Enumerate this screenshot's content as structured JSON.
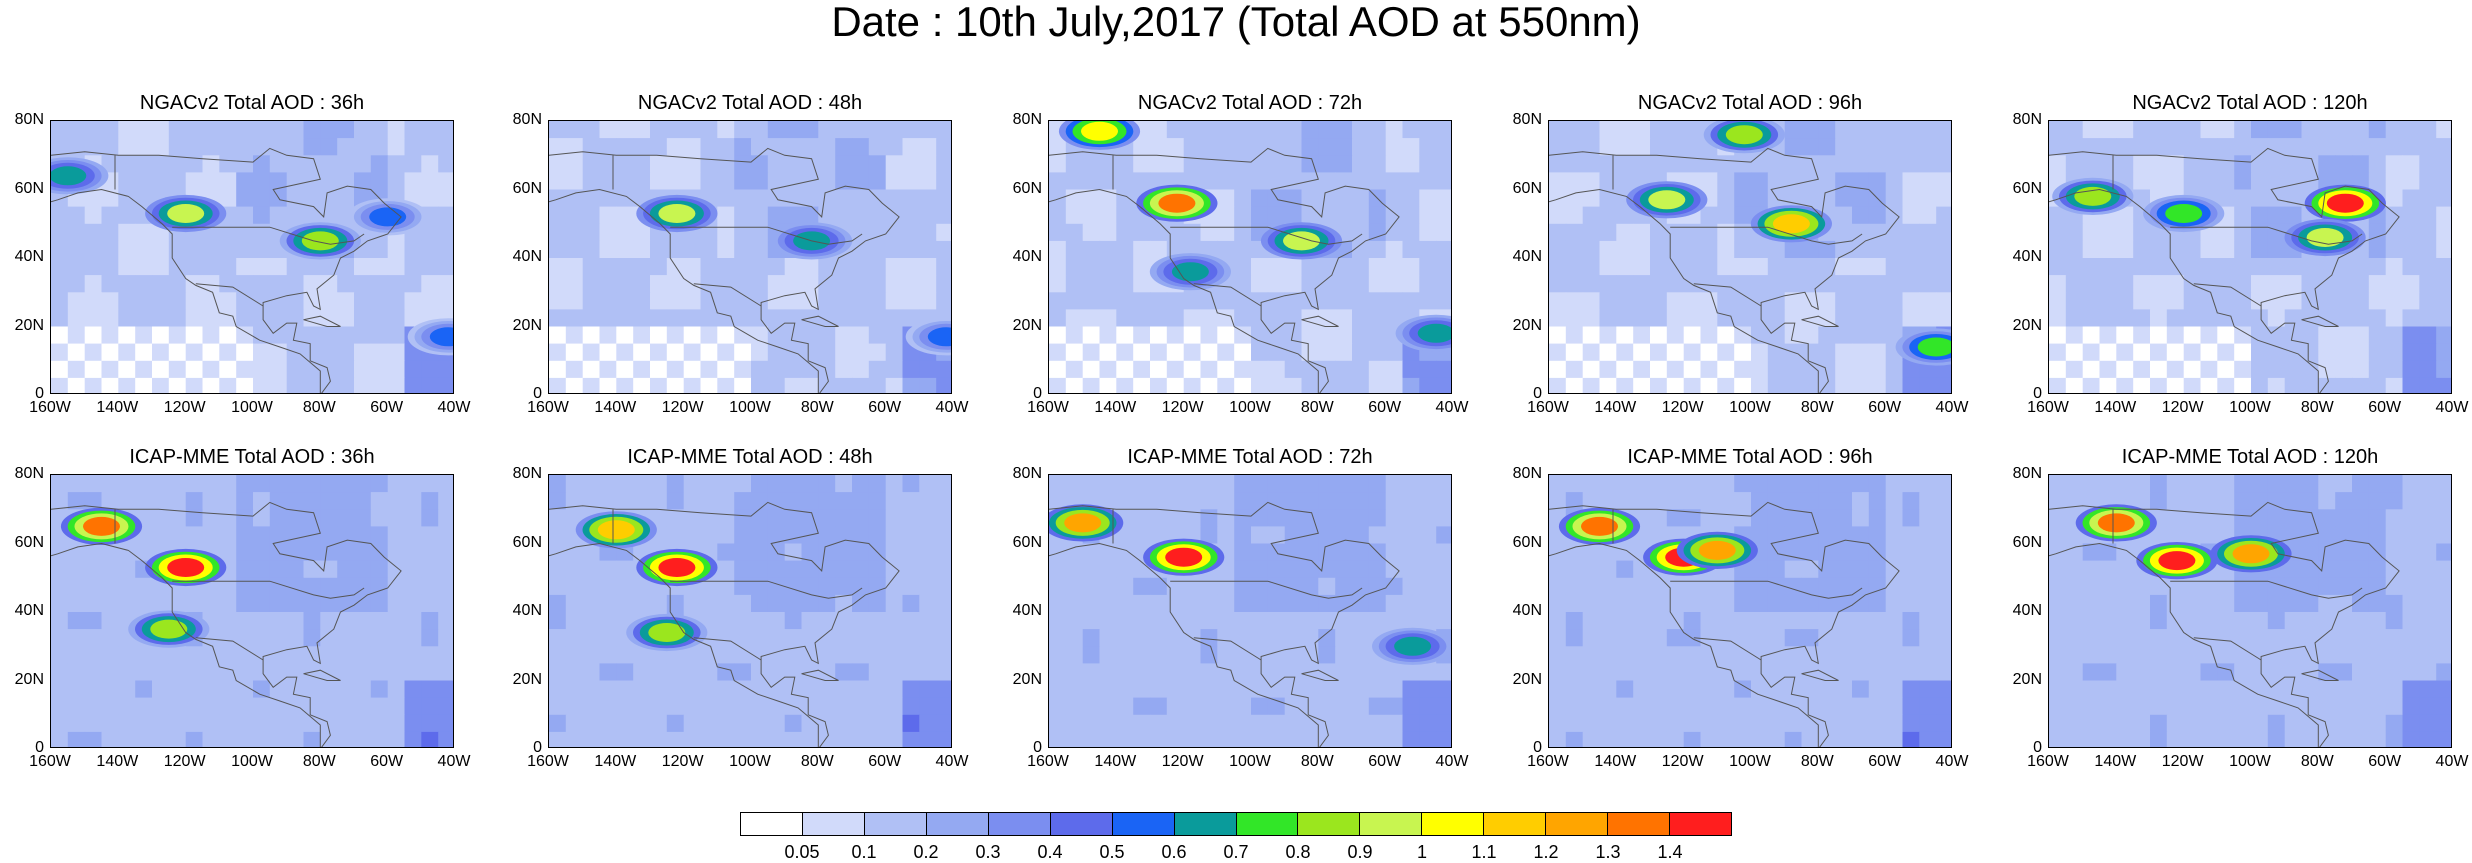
{
  "title": "Date : 10th July,2017 (Total AOD at 550nm)",
  "axes": {
    "lat_ticks": [
      "80N",
      "60N",
      "40N",
      "20N",
      "0"
    ],
    "lon_ticks": [
      "160W",
      "140W",
      "120W",
      "100W",
      "80W",
      "60W",
      "40W"
    ]
  },
  "colors": {
    "background_low": "#c8d4fa",
    "background_mid": "#a9baf3",
    "map_lines": "#555555"
  },
  "chart_data": {
    "type": "heatmap",
    "title": "Date : 10th July,2017 (Total AOD at 550nm)",
    "xlim": [
      -160,
      -40
    ],
    "ylim": [
      0,
      80
    ],
    "grid": false,
    "legend_placement": "bottom-center",
    "colorbar": {
      "levels": [
        "0.05",
        "0.1",
        "0.2",
        "0.3",
        "0.4",
        "0.5",
        "0.6",
        "0.7",
        "0.8",
        "0.9",
        "1",
        "1.1",
        "1.2",
        "1.3",
        "1.4"
      ],
      "colors": [
        "#ffffff",
        "#d1dafa",
        "#b0c0f5",
        "#94a9f2",
        "#7b8ef0",
        "#5d6beb",
        "#1a64f5",
        "#0a9b9b",
        "#32e628",
        "#9be61e",
        "#c8f550",
        "#ffff00",
        "#ffcd00",
        "#ffa500",
        "#ff7300",
        "#ff1e1e"
      ]
    },
    "panels": [
      {
        "row": "NGACv2",
        "lead": "36h",
        "title": "NGACv2 Total AOD : 36h",
        "hotspots": [
          {
            "lon": -120,
            "lat": 53,
            "aod": 0.9
          },
          {
            "lon": -80,
            "lat": 45,
            "aod": 0.8
          },
          {
            "lon": -155,
            "lat": 64,
            "aod": 0.6
          },
          {
            "lon": -42,
            "lat": 17,
            "aod": 0.5
          },
          {
            "lon": -60,
            "lat": 52,
            "aod": 0.5
          }
        ]
      },
      {
        "row": "NGACv2",
        "lead": "48h",
        "title": "NGACv2 Total AOD : 48h",
        "hotspots": [
          {
            "lon": -122,
            "lat": 53,
            "aod": 0.9
          },
          {
            "lon": -82,
            "lat": 45,
            "aod": 0.6
          },
          {
            "lon": -42,
            "lat": 17,
            "aod": 0.5
          }
        ]
      },
      {
        "row": "NGACv2",
        "lead": "72h",
        "title": "NGACv2 Total AOD : 72h",
        "hotspots": [
          {
            "lon": -122,
            "lat": 56,
            "aod": 1.3
          },
          {
            "lon": -85,
            "lat": 45,
            "aod": 0.9
          },
          {
            "lon": -145,
            "lat": 77,
            "aod": 1.0
          },
          {
            "lon": -118,
            "lat": 36,
            "aod": 0.6
          },
          {
            "lon": -45,
            "lat": 18,
            "aod": 0.6
          }
        ]
      },
      {
        "row": "NGACv2",
        "lead": "96h",
        "title": "NGACv2 Total AOD : 96h",
        "hotspots": [
          {
            "lon": -88,
            "lat": 50,
            "aod": 1.1
          },
          {
            "lon": -125,
            "lat": 57,
            "aod": 0.9
          },
          {
            "lon": -102,
            "lat": 76,
            "aod": 0.8
          },
          {
            "lon": -45,
            "lat": 14,
            "aod": 0.7
          }
        ]
      },
      {
        "row": "NGACv2",
        "lead": "120h",
        "title": "NGACv2 Total AOD : 120h",
        "hotspots": [
          {
            "lon": -72,
            "lat": 56,
            "aod": 1.4
          },
          {
            "lon": -78,
            "lat": 46,
            "aod": 0.9
          },
          {
            "lon": -147,
            "lat": 58,
            "aod": 0.8
          },
          {
            "lon": -120,
            "lat": 53,
            "aod": 0.7
          }
        ]
      },
      {
        "row": "ICAP-MME",
        "lead": "36h",
        "title": "ICAP-MME Total AOD : 36h",
        "hotspots": [
          {
            "lon": -145,
            "lat": 65,
            "aod": 1.3
          },
          {
            "lon": -120,
            "lat": 53,
            "aod": 1.4
          },
          {
            "lon": -125,
            "lat": 35,
            "aod": 0.8
          }
        ]
      },
      {
        "row": "ICAP-MME",
        "lead": "48h",
        "title": "ICAP-MME Total AOD : 48h",
        "hotspots": [
          {
            "lon": -140,
            "lat": 64,
            "aod": 1.1
          },
          {
            "lon": -122,
            "lat": 53,
            "aod": 1.4
          },
          {
            "lon": -125,
            "lat": 34,
            "aod": 0.8
          }
        ]
      },
      {
        "row": "ICAP-MME",
        "lead": "72h",
        "title": "ICAP-MME Total AOD : 72h",
        "hotspots": [
          {
            "lon": -120,
            "lat": 56,
            "aod": 1.4
          },
          {
            "lon": -150,
            "lat": 66,
            "aod": 1.2
          },
          {
            "lon": -52,
            "lat": 30,
            "aod": 0.6
          }
        ]
      },
      {
        "row": "ICAP-MME",
        "lead": "96h",
        "title": "ICAP-MME Total AOD : 96h",
        "hotspots": [
          {
            "lon": -145,
            "lat": 65,
            "aod": 1.3
          },
          {
            "lon": -120,
            "lat": 56,
            "aod": 1.4
          },
          {
            "lon": -110,
            "lat": 58,
            "aod": 1.2
          }
        ]
      },
      {
        "row": "ICAP-MME",
        "lead": "120h",
        "title": "ICAP-MME Total AOD : 120h",
        "hotspots": [
          {
            "lon": -140,
            "lat": 66,
            "aod": 1.3
          },
          {
            "lon": -122,
            "lat": 55,
            "aod": 1.4
          },
          {
            "lon": -100,
            "lat": 57,
            "aod": 1.2
          }
        ]
      }
    ]
  }
}
